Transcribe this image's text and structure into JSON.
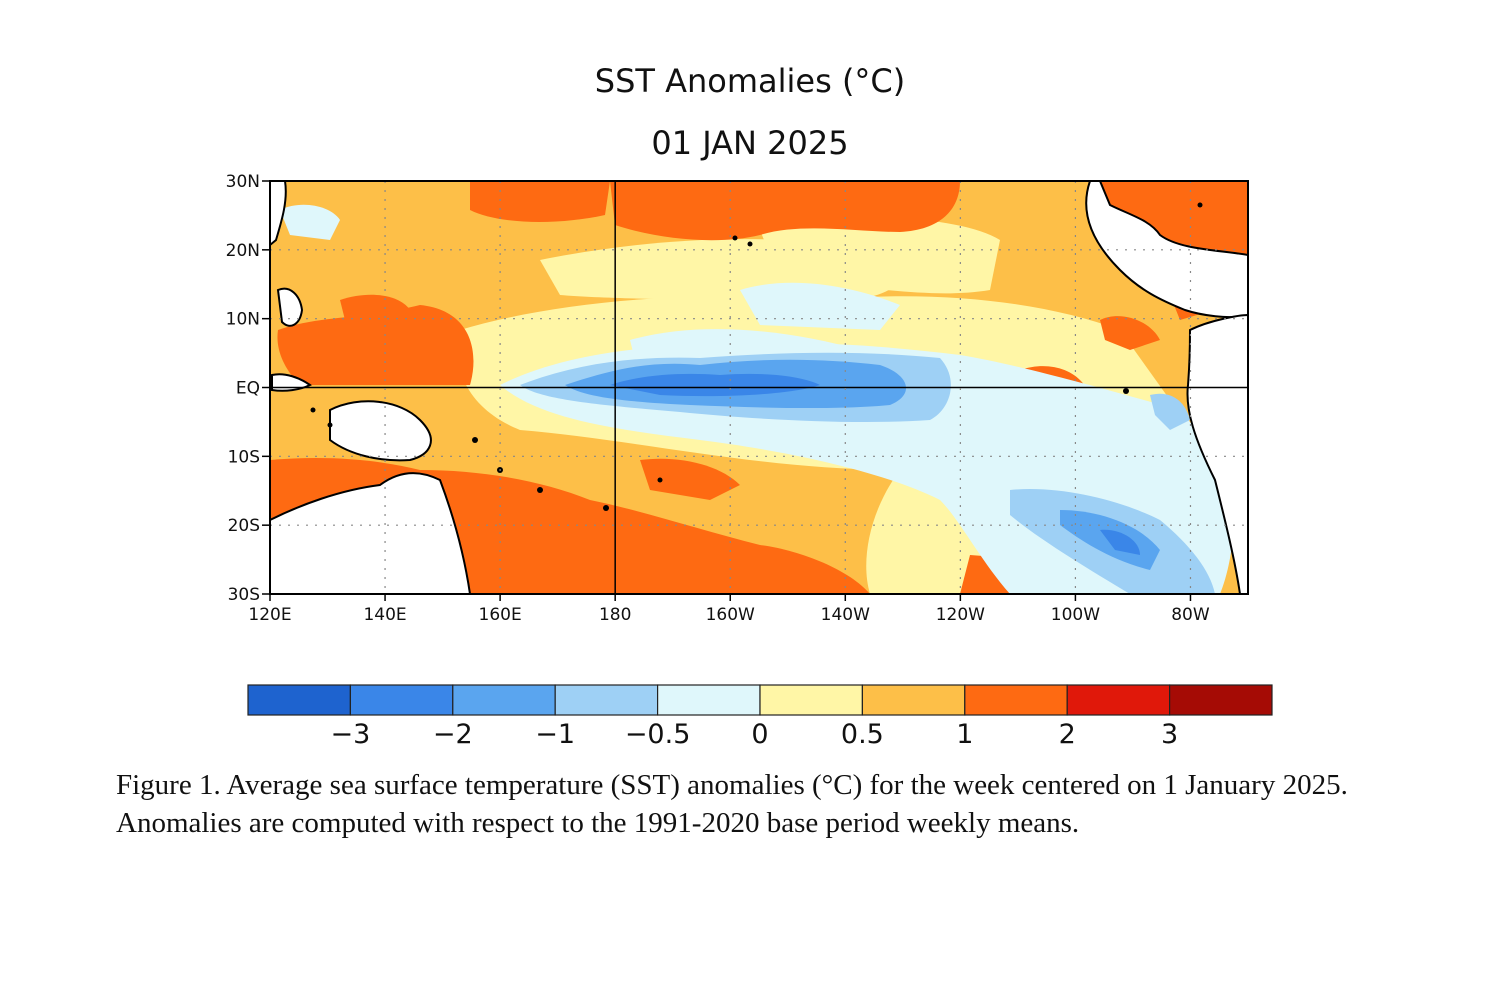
{
  "title": "SST Anomalies (°C)",
  "subtitle": "01 JAN 2025",
  "map": {
    "lon_range": [
      120,
      290
    ],
    "lat_range": [
      -30,
      30
    ],
    "lat_ticks": [
      {
        "v": 30,
        "label": "30N"
      },
      {
        "v": 20,
        "label": "20N"
      },
      {
        "v": 10,
        "label": "10N"
      },
      {
        "v": 0,
        "label": "EQ"
      },
      {
        "v": -10,
        "label": "10S"
      },
      {
        "v": -20,
        "label": "20S"
      },
      {
        "v": -30,
        "label": "30S"
      }
    ],
    "lon_ticks": [
      {
        "v": 120,
        "label": "120E"
      },
      {
        "v": 140,
        "label": "140E"
      },
      {
        "v": 160,
        "label": "160E"
      },
      {
        "v": 180,
        "label": "180"
      },
      {
        "v": 200,
        "label": "160W"
      },
      {
        "v": 220,
        "label": "140W"
      },
      {
        "v": 240,
        "label": "120W"
      },
      {
        "v": 260,
        "label": "100W"
      },
      {
        "v": 280,
        "label": "80W"
      }
    ],
    "gridlines": "dotted",
    "solid_lines": {
      "equator": 0,
      "dateline": 180
    },
    "land_color": "#ffffff"
  },
  "colorbar": {
    "colors": [
      "#1e63cf",
      "#3a86e8",
      "#5aa5ef",
      "#9ed0f5",
      "#dff7fb",
      "#fff6a6",
      "#fdbf48",
      "#fe6a12",
      "#e0180a",
      "#a50b05"
    ],
    "labels": [
      "−3",
      "−2",
      "−1",
      "−0.5",
      "0",
      "0.5",
      "1",
      "2",
      "3"
    ]
  },
  "caption": "Figure 1. Average sea surface temperature (SST) anomalies (°C) for the week centered on 1 January 2025.  Anomalies are computed with respect to the 1991-2020 base period weekly means."
}
